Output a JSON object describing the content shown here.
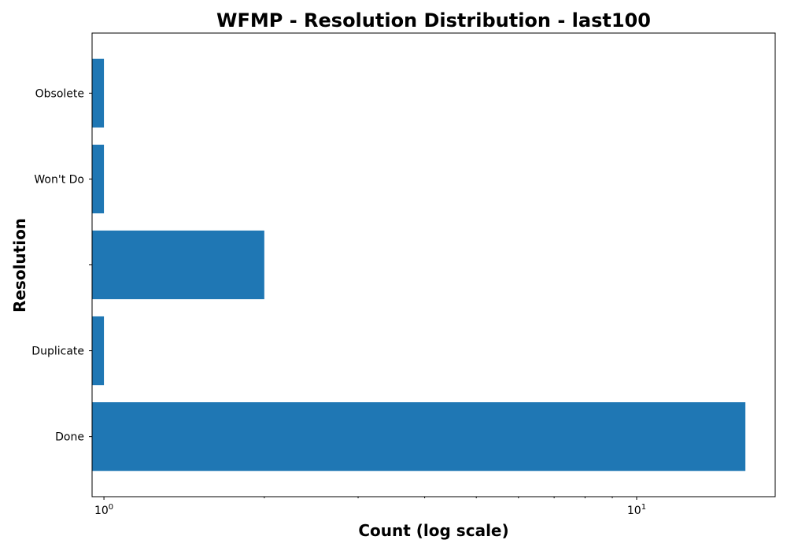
{
  "chart_data": {
    "type": "bar",
    "orientation": "horizontal",
    "title": "WFMP - Resolution Distribution - last100",
    "xlabel": "Count (log scale)",
    "ylabel": "Resolution",
    "xscale": "log",
    "xlim": [
      0.95,
      18.2
    ],
    "categories": [
      "Done",
      "Duplicate",
      "",
      "Won't Do",
      "Obsolete"
    ],
    "values": [
      16,
      1,
      2,
      1,
      1
    ],
    "x_major_ticks": [
      {
        "base": "10",
        "exponent": "0",
        "value": 1
      },
      {
        "base": "10",
        "exponent": "1",
        "value": 10
      }
    ],
    "grid": false,
    "legend": "none",
    "bar_color": "#1f77b4"
  }
}
